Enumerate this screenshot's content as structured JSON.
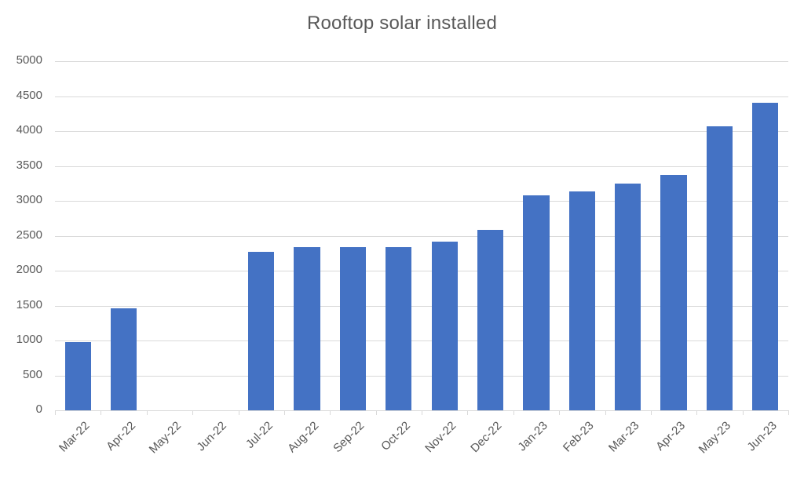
{
  "chart_data": {
    "type": "bar",
    "title": "Rooftop solar installed",
    "xlabel": "",
    "ylabel": "",
    "ylim": [
      0,
      5000
    ],
    "yticks": [
      0,
      500,
      1000,
      1500,
      2000,
      2500,
      3000,
      3500,
      4000,
      4500,
      5000
    ],
    "grid": true,
    "legend": null,
    "bar_color": "#4472c4",
    "categories": [
      "Mar-22",
      "Apr-22",
      "May-22",
      "Jun-22",
      "Jul-22",
      "Aug-22",
      "Sep-22",
      "Oct-22",
      "Nov-22",
      "Dec-22",
      "Jan-23",
      "Feb-23",
      "Mar-23",
      "Apr-23",
      "May-23",
      "Jun-23"
    ],
    "values": [
      980,
      1460,
      0,
      0,
      2270,
      2340,
      2340,
      2340,
      2420,
      2590,
      3080,
      3140,
      3250,
      3370,
      4070,
      4410
    ]
  }
}
